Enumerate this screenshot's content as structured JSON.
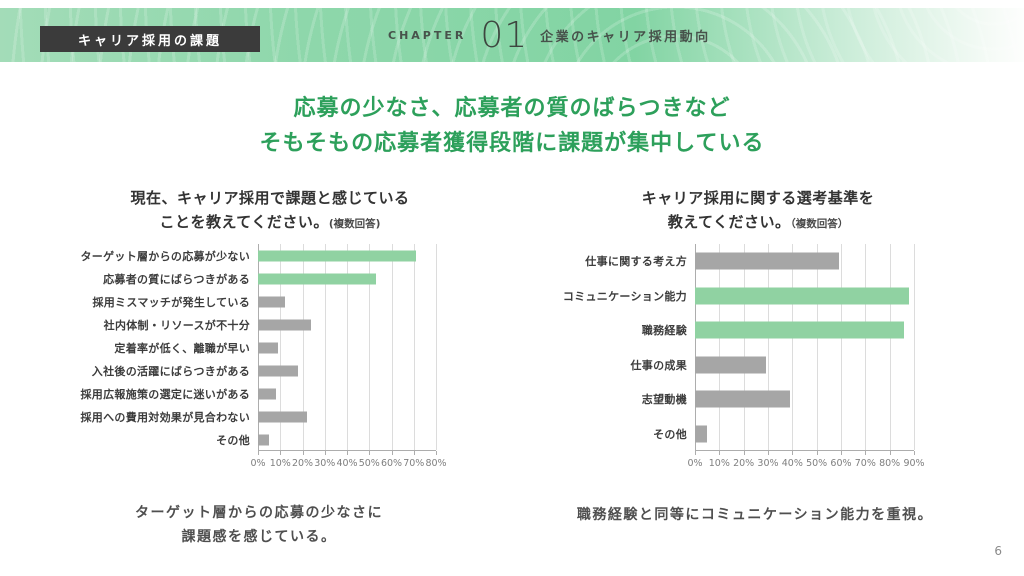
{
  "header": {
    "badge": "キャリア採用の課題",
    "chapter_label": "CHAPTER",
    "chapter_number": "01",
    "chapter_title": "企業のキャリア採用動向"
  },
  "title": {
    "line1": "応募の少なさ、応募者の質のばらつきなど",
    "line2": "そもそもの応募者獲得段階に課題が集中している"
  },
  "colors": {
    "accent_green": "#2da05b",
    "bar_green": "#90d2a2",
    "bar_gray": "#a6a6a6",
    "badge_bg": "#3b3b3b"
  },
  "chart_data": [
    {
      "type": "bar",
      "orientation": "horizontal",
      "title_line1": "現在、キャリア採用で課題と感じている",
      "title_line2": "ことを教えてください。",
      "note": "(複数回答)",
      "categories": [
        "ターゲット層からの応募が少ない",
        "応募者の質にばらつきがある",
        "採用ミスマッチが発生している",
        "社内体制・リソースが不十分",
        "定着率が低く、離職が早い",
        "入社後の活躍にばらつきがある",
        "採用広報施策の選定に迷いがある",
        "採用への費用対効果が見合わない",
        "その他"
      ],
      "values": [
        71,
        53,
        12,
        24,
        9,
        18,
        8,
        22,
        5
      ],
      "highlight": [
        true,
        true,
        false,
        false,
        false,
        false,
        false,
        false,
        false
      ],
      "xlim": [
        0,
        80
      ],
      "tick_step": 10,
      "tick_labels": [
        "0%",
        "10%",
        "20%",
        "30%",
        "40%",
        "50%",
        "60%",
        "70%",
        "80%"
      ],
      "bar_color": "#a6a6a6",
      "highlight_color": "#90d2a2",
      "grid": true,
      "legend": "none",
      "caption_line1": "ターゲット層からの応募の少なさに",
      "caption_line2": "課題感を感じている。"
    },
    {
      "type": "bar",
      "orientation": "horizontal",
      "title_line1": "キャリア採用に関する選考基準を",
      "title_line2": "教えてください。",
      "note": "（複数回答）",
      "categories": [
        "仕事に関する考え方",
        "コミュニケーション能力",
        "職務経験",
        "仕事の成果",
        "志望動機",
        "その他"
      ],
      "values": [
        59,
        88,
        86,
        29,
        39,
        5
      ],
      "highlight": [
        false,
        true,
        true,
        false,
        false,
        false
      ],
      "xlim": [
        0,
        90
      ],
      "tick_step": 10,
      "tick_labels": [
        "0%",
        "10%",
        "20%",
        "30%",
        "40%",
        "50%",
        "60%",
        "70%",
        "80%",
        "90%"
      ],
      "bar_color": "#a6a6a6",
      "highlight_color": "#90d2a2",
      "grid": true,
      "legend": "none",
      "caption_line1": "職務経験と同等にコミュニケーション能力を重視。"
    }
  ],
  "page_number": "6"
}
